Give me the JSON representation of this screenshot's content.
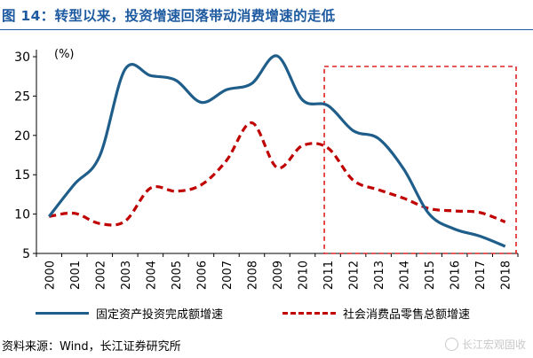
{
  "header": {
    "figure_title": "图 14：转型以来，投资增速回落带动消费增速的走低"
  },
  "chart_data": {
    "type": "line",
    "ylabel": "(%)",
    "ylim": [
      5,
      30
    ],
    "yticks": [
      5,
      10,
      15,
      20,
      25,
      30
    ],
    "x": [
      "2000",
      "2001",
      "2002",
      "2003",
      "2004",
      "2005",
      "2006",
      "2007",
      "2008",
      "2009",
      "2010",
      "2011",
      "2012",
      "2013",
      "2014",
      "2015",
      "2016",
      "2017",
      "2018"
    ],
    "series": [
      {
        "name": "固定资产投资完成额增速",
        "color": "#1f5e8a",
        "style": "solid",
        "values": [
          9.7,
          13.8,
          17.4,
          28.4,
          27.6,
          27.0,
          24.2,
          25.8,
          26.6,
          30.1,
          24.5,
          23.8,
          20.6,
          19.6,
          15.7,
          10.0,
          8.1,
          7.2,
          5.9
        ]
      },
      {
        "name": "社会消费品零售总额增速",
        "color": "#c00000",
        "style": "dashed",
        "values": [
          9.7,
          10.1,
          8.8,
          9.1,
          13.3,
          12.9,
          13.7,
          16.8,
          21.6,
          15.9,
          18.7,
          18.4,
          14.3,
          13.1,
          12.0,
          10.7,
          10.4,
          10.2,
          9.0
        ]
      }
    ],
    "highlight": {
      "from": "2011",
      "to": "2018",
      "color": "#e02020",
      "style": "dashed"
    },
    "grid": false,
    "legend_position": "bottom"
  },
  "footer": {
    "source": "资料来源：Wind，长江证券研究所",
    "watermark": "长江宏观固收"
  }
}
